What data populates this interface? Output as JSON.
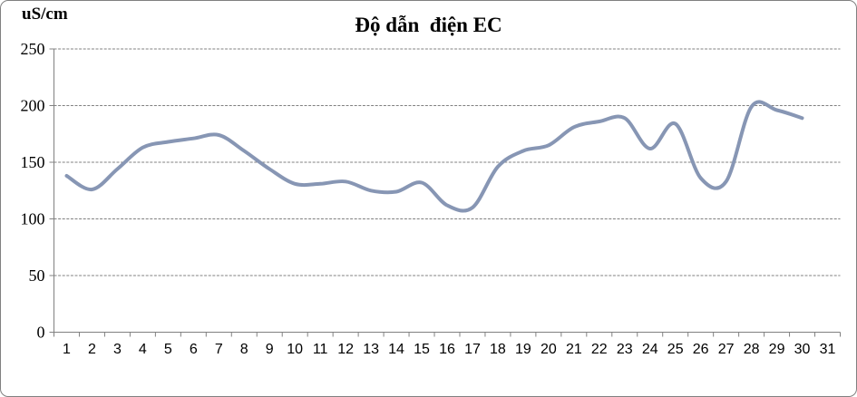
{
  "chart": {
    "title": "Độ dẫn  điện EC",
    "unit_label": "uS/cm"
  },
  "colors": {
    "line": "#8796B4",
    "grid": "#808080",
    "axis": "#808080",
    "border": "#808080",
    "text": "#000000"
  },
  "chart_data": {
    "type": "line",
    "title": "Độ dẫn  điện EC",
    "ylabel": "uS/cm",
    "xlabel": "",
    "smooth": true,
    "grid": true,
    "legend": false,
    "ylim": [
      0,
      250
    ],
    "yticks": [
      0,
      50,
      100,
      150,
      200,
      250
    ],
    "categories": [
      "1",
      "2",
      "3",
      "4",
      "5",
      "6",
      "7",
      "8",
      "9",
      "10",
      "11",
      "12",
      "13",
      "14",
      "15",
      "16",
      "17",
      "18",
      "19",
      "20",
      "21",
      "22",
      "23",
      "24",
      "25",
      "26",
      "27",
      "28",
      "29",
      "30",
      "31"
    ],
    "series": [
      {
        "name": "EC",
        "values": [
          138,
          126,
          144,
          163,
          168,
          171,
          174,
          160,
          144,
          131,
          131,
          133,
          125,
          124,
          132,
          112,
          110,
          146,
          160,
          165,
          181,
          186,
          189,
          162,
          184,
          136,
          133,
          199,
          196,
          189,
          null
        ]
      }
    ]
  }
}
